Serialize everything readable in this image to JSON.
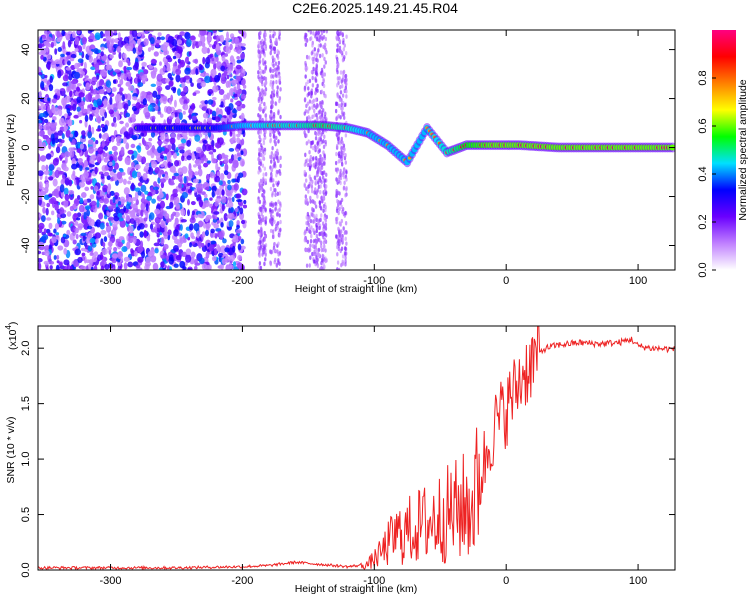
{
  "title": "C2E6.2025.149.21.45.R04",
  "chart_data": [
    {
      "type": "heatmap",
      "xlabel": "Height of straight line (km)",
      "ylabel": "Frequency (Hz)",
      "xlim": [
        -355,
        128
      ],
      "ylim": [
        -50,
        48
      ],
      "xticks": [
        -300,
        -200,
        -100,
        0,
        100
      ],
      "yticks": [
        -40,
        -20,
        0,
        20,
        40
      ],
      "colorbar": {
        "label": "Normalized spectral amplitude",
        "range": [
          0.0,
          1.0
        ],
        "ticks": [
          0.0,
          0.2,
          0.4,
          0.6,
          0.8
        ],
        "colors": [
          "#ffffff",
          "#c080ff",
          "#6a00ff",
          "#0000ff",
          "#00e0ff",
          "#00ff00",
          "#ffff00",
          "#ff8000",
          "#ff0000",
          "#ff0080"
        ]
      },
      "ridge": [
        {
          "x": -280,
          "y": 8,
          "amp": 0.35
        },
        {
          "x": -250,
          "y": 8,
          "amp": 0.4
        },
        {
          "x": -220,
          "y": 8,
          "amp": 0.4
        },
        {
          "x": -200,
          "y": 9,
          "amp": 0.5
        },
        {
          "x": -180,
          "y": 9,
          "amp": 0.55
        },
        {
          "x": -160,
          "y": 9,
          "amp": 0.55
        },
        {
          "x": -140,
          "y": 9,
          "amp": 0.6
        },
        {
          "x": -120,
          "y": 8,
          "amp": 0.55
        },
        {
          "x": -105,
          "y": 6,
          "amp": 0.5
        },
        {
          "x": -90,
          "y": 1,
          "amp": 0.5
        },
        {
          "x": -75,
          "y": -6,
          "amp": 0.5
        },
        {
          "x": -60,
          "y": 8,
          "amp": 0.5
        },
        {
          "x": -45,
          "y": -2,
          "amp": 0.55
        },
        {
          "x": -30,
          "y": 1,
          "amp": 0.65
        },
        {
          "x": -10,
          "y": 1,
          "amp": 0.7
        },
        {
          "x": 10,
          "y": 1,
          "amp": 0.7
        },
        {
          "x": 40,
          "y": 0,
          "amp": 0.7
        },
        {
          "x": 70,
          "y": 0,
          "amp": 0.7
        },
        {
          "x": 100,
          "y": 0,
          "amp": 0.7
        },
        {
          "x": 128,
          "y": 0,
          "amp": 0.7
        }
      ]
    },
    {
      "type": "line",
      "xlabel": "Height of straight line (km)",
      "ylabel": "SNR (10 * v/v)",
      "multiplier_label": "(x10",
      "multiplier_exp": "4",
      "xlim": [
        -355,
        128
      ],
      "ylim": [
        0,
        2.2
      ],
      "xticks": [
        -300,
        -200,
        -100,
        0,
        100
      ],
      "yticks": [
        0.0,
        0.5,
        1.0,
        1.5,
        2.0
      ],
      "line_color": "#ee2222",
      "x": [
        -355,
        -300,
        -250,
        -200,
        -180,
        -160,
        -140,
        -120,
        -105,
        -95,
        -85,
        -75,
        -65,
        -55,
        -45,
        -35,
        -25,
        -18,
        -12,
        -6,
        0,
        6,
        12,
        18,
        24,
        30,
        40,
        55,
        70,
        85,
        95,
        100,
        110,
        128
      ],
      "y": [
        0.02,
        0.02,
        0.02,
        0.03,
        0.04,
        0.07,
        0.05,
        0.03,
        0.05,
        0.15,
        0.3,
        0.35,
        0.4,
        0.45,
        0.5,
        0.55,
        0.6,
        0.9,
        1.2,
        1.35,
        1.45,
        1.6,
        1.75,
        1.85,
        1.95,
        2.0,
        2.03,
        2.05,
        2.04,
        2.05,
        2.08,
        2.02,
        2.0,
        1.99
      ]
    }
  ]
}
